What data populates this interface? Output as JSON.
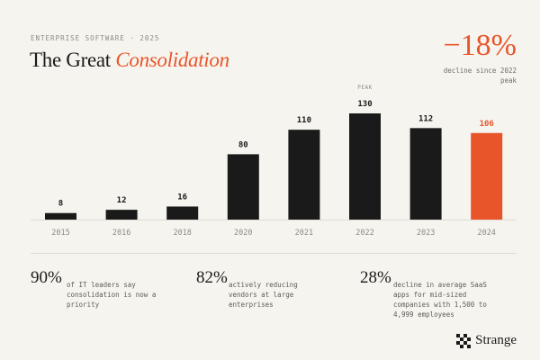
{
  "header": {
    "eyebrow": "ENTERPRISE SOFTWARE · 2025",
    "title_main": "The Great",
    "title_accent": "Consolidation"
  },
  "headline_stat": {
    "value": "−18%",
    "caption": "decline since 2022 peak"
  },
  "chart_data": {
    "type": "bar",
    "categories": [
      "2015",
      "2016",
      "2018",
      "2020",
      "2021",
      "2022",
      "2023",
      "2024"
    ],
    "values": [
      8,
      12,
      16,
      80,
      110,
      130,
      112,
      106
    ],
    "value_labels": [
      "8",
      "12",
      "16",
      "80",
      "110",
      "130",
      "112",
      "106"
    ],
    "highlight_index": 7,
    "annotation": {
      "index": 5,
      "text": "PEAK"
    },
    "ylim": [
      0,
      130
    ],
    "grid": false,
    "title": "",
    "xlabel": "",
    "ylabel": "",
    "colors": {
      "bar": "#1a1a1a",
      "highlight": "#e8552a"
    }
  },
  "stats": [
    {
      "value": "90%",
      "text": "of IT leaders say consolidation is now a priority",
      "accent": true
    },
    {
      "value": "82%",
      "text": "actively reducing vendors at large enterprises",
      "accent": false
    },
    {
      "value": "28%",
      "text": "decline in average SaaS apps for mid-sized companies with 1,500 to 4,999 employees",
      "accent": false
    }
  ],
  "brand": {
    "name": "Strange",
    "icon": "checker-logo-icon"
  },
  "colors": {
    "accent": "#e8552a",
    "background": "#f6f4ef",
    "text": "#1a1a1a"
  }
}
